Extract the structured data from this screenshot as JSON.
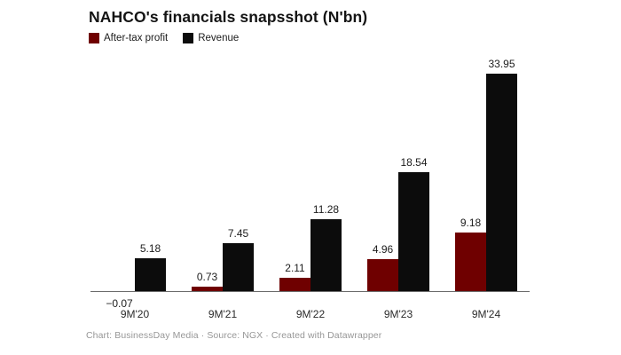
{
  "header": {
    "title": "NAHCO's financials snapsshot (N'bn)"
  },
  "legend": {
    "items": [
      {
        "label": "After-tax profit",
        "color": "#6f0000"
      },
      {
        "label": "Revenue",
        "color": "#0c0c0c"
      }
    ]
  },
  "chart_data": {
    "type": "bar",
    "title": "NAHCO's financials snapsshot (N'bn)",
    "unit": "N'bn",
    "categories": [
      "9M'20",
      "9M'21",
      "9M'22",
      "9M'23",
      "9M'24"
    ],
    "series": [
      {
        "name": "After-tax profit",
        "color": "#6f0000",
        "values": [
          -0.07,
          0.73,
          2.11,
          4.96,
          9.18
        ]
      },
      {
        "name": "Revenue",
        "color": "#0c0c0c",
        "values": [
          5.18,
          7.45,
          11.28,
          18.54,
          33.95
        ]
      }
    ],
    "value_labels": {
      "After-tax profit": [
        "−0.07",
        "0.73",
        "2.11",
        "4.96",
        "9.18"
      ],
      "Revenue": [
        "5.18",
        "7.45",
        "11.28",
        "18.54",
        "33.95"
      ]
    },
    "ylim": [
      -0.5,
      34
    ],
    "grid": false,
    "legend_position": "top-left",
    "axis_line_color": "#6b6b6b",
    "value_label_color": "#1c1c1c",
    "tick_label_color": "#2b2b2b"
  },
  "footer": {
    "text": "Chart: BusinessDay Media · Source: NGX · Created with Datawrapper"
  }
}
